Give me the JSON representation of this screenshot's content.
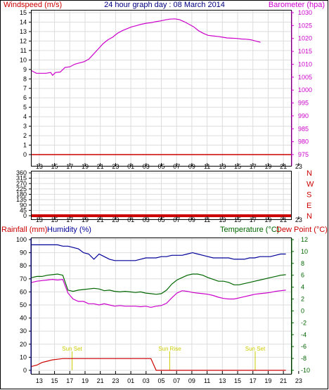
{
  "header": {
    "windspeed_label": "Windspeed (m/s)",
    "title": "24 hour graph day : 08 March 2014",
    "barometer_label": "Barometer (hpa)"
  },
  "bottom": {
    "rainfall_label": "Rainfall (mm)",
    "humidity_label": "Humidity (%)",
    "temperature_label": "Temperature (°C)",
    "dewpoint_label": "Dew Point (°C)"
  },
  "colors": {
    "windspeed": "#cc0000",
    "barometer": "#cc00cc",
    "direction": "#cc0000",
    "humidity": "#000099",
    "temperature": "#006600",
    "dewpoint": "#cc00cc",
    "rainfall": "#cc0000",
    "sun_event": "#cccc00",
    "grid": "#dddddd"
  },
  "x_ticks": [
    "13",
    "15",
    "17",
    "19",
    "21",
    "23",
    "01",
    "03",
    "05",
    "07",
    "09",
    "11",
    "13",
    "15",
    "17",
    "19",
    "21",
    "23"
  ],
  "chart_data": [
    {
      "type": "line",
      "title": "24 hour graph day : 08 March 2014",
      "x_hours_from_start": [
        0,
        0.5,
        1,
        1.5,
        2,
        2.2,
        2.5,
        3,
        3.5,
        4,
        4.5,
        5,
        5.5,
        6,
        6.5,
        7,
        7.5,
        8,
        8.5,
        9,
        9.5,
        10,
        10.5,
        11,
        11.5,
        12,
        12.5,
        13,
        13.5,
        14,
        14.5,
        15,
        15.5,
        16,
        16.5,
        17,
        17.5,
        18,
        18.5,
        19,
        19.5,
        20,
        20.5,
        21,
        21.5,
        22,
        22.5,
        23,
        23.5,
        24
      ],
      "left_axis": {
        "label": "Windspeed (m/s)",
        "ylim": [
          0,
          15
        ],
        "ticks": [
          0,
          1,
          2,
          3,
          4,
          5,
          6,
          7,
          8,
          9,
          10,
          11,
          12,
          13,
          14,
          15
        ]
      },
      "right_axis": {
        "label": "Barometer (hpa)",
        "ylim": [
          975,
          1030
        ],
        "ticks": [
          975,
          980,
          985,
          990,
          995,
          1000,
          1005,
          1010,
          1015,
          1020,
          1025,
          1030
        ]
      },
      "series": [
        {
          "name": "Windspeed (m/s)",
          "axis": "left",
          "values": [
            0,
            0,
            0,
            0,
            0,
            0,
            0,
            0,
            0,
            0,
            0,
            0,
            0,
            0,
            0,
            0,
            0,
            0,
            0,
            0,
            0,
            0,
            0,
            0,
            0,
            0,
            0,
            0,
            0,
            0,
            0,
            0,
            0,
            0,
            0,
            0,
            0,
            0,
            0,
            0,
            0,
            0,
            0,
            0,
            0,
            0,
            0,
            0,
            0,
            0
          ]
        },
        {
          "name": "Barometer (hpa)",
          "axis": "right",
          "values": [
            1007.5,
            1006.5,
            1006.5,
            1006.5,
            1006.8,
            1005.7,
            1006.8,
            1007,
            1008.8,
            1009,
            1010,
            1010.5,
            1011,
            1012,
            1014,
            1016,
            1018,
            1019.5,
            1020.5,
            1022,
            1023,
            1023.8,
            1024.5,
            1025,
            1025.5,
            1025.9,
            1026.1,
            1026.5,
            1026.8,
            1027.2,
            1027.5,
            1027.6,
            1027.3,
            1026.5,
            1025.5,
            1024.5,
            1023,
            1022,
            1021.2,
            1021,
            1020.8,
            1020.5,
            1020.2,
            1020.1,
            1020,
            1019.8,
            1019.7,
            1019.5,
            1019,
            1018.5
          ]
        }
      ]
    },
    {
      "type": "line",
      "title": "",
      "left_axis": {
        "ylim": [
          0,
          360
        ],
        "ticks": [
          0,
          45,
          90,
          135,
          180,
          225,
          270,
          315,
          360
        ]
      },
      "right_axis": {
        "ticks": [
          "N",
          "W",
          "S",
          "E",
          "N"
        ]
      },
      "series": [
        {
          "name": "",
          "values": [
            0,
            0,
            0,
            0,
            0,
            0,
            0,
            0,
            0,
            0,
            0,
            0,
            0,
            0,
            0,
            0,
            0,
            0,
            0,
            0,
            0,
            0,
            0,
            0,
            0,
            0,
            0,
            0,
            0,
            0,
            0,
            0,
            0,
            0,
            0,
            0,
            0,
            0,
            0,
            0,
            0,
            0,
            0,
            0,
            0,
            0,
            0,
            0,
            0,
            0
          ]
        }
      ]
    },
    {
      "type": "line",
      "title": "",
      "left_axis": {
        "label": "Rainfall (mm) / Humidity (%)",
        "ylim": [
          0,
          100
        ],
        "ticks": [
          0,
          10,
          20,
          30,
          40,
          50,
          60,
          70,
          80,
          90,
          100
        ]
      },
      "right_axis": {
        "label": "Temperature (°C) / Dew Point (°C)",
        "ylim": [
          -10,
          12
        ],
        "ticks": [
          -10,
          -8,
          -6,
          -4,
          -2,
          0,
          2,
          4,
          6,
          8,
          10,
          12
        ]
      },
      "annotations": [
        {
          "text": "Sun Set",
          "x_hours_from_start": 5.3
        },
        {
          "text": "Sun Rise",
          "x_hours_from_start": 18.1
        },
        {
          "text": "Sun Set",
          "x_hours_from_start": 29.3
        }
      ],
      "series": [
        {
          "name": "Humidity (%)",
          "axis": "left",
          "values": [
            96,
            96,
            96,
            96,
            96,
            96,
            95,
            95,
            94,
            93,
            90,
            89,
            85,
            89,
            87,
            85,
            84,
            84,
            84,
            84,
            84,
            85,
            86,
            86,
            86,
            87,
            87,
            88,
            88,
            88,
            89,
            90,
            89,
            88,
            87,
            86,
            86,
            86,
            86,
            85,
            85,
            85,
            86,
            86,
            87,
            87,
            87,
            88,
            89,
            89
          ]
        },
        {
          "name": "Temperature (°C)",
          "axis": "right",
          "values": [
            5.6,
            5.8,
            5.8,
            6,
            6.1,
            6.2,
            6.0,
            3.5,
            3.3,
            3.5,
            3.6,
            3.7,
            3.8,
            3.7,
            3.4,
            3.5,
            3.3,
            3.2,
            3.3,
            3.2,
            3.1,
            3.2,
            3.0,
            2.9,
            2.8,
            2.9,
            3.5,
            4.5,
            5.2,
            5.6,
            6.0,
            6.2,
            6.2,
            6.0,
            5.6,
            5.3,
            5.0,
            5.0,
            4.8,
            4.4,
            4.4,
            4.6,
            4.8,
            5.0,
            5.2,
            5.4,
            5.6,
            5.8,
            6.0,
            6.1
          ]
        },
        {
          "name": "Dew Point (°C)",
          "axis": "right",
          "values": [
            4.8,
            5.0,
            5.1,
            5.2,
            5.3,
            5.2,
            5.3,
            3.0,
            2.0,
            1.6,
            1.6,
            1.2,
            1.2,
            1.0,
            1.2,
            1.0,
            0.8,
            0.9,
            0.8,
            0.8,
            0.8,
            0.7,
            0.8,
            0.6,
            0.8,
            0.9,
            1.3,
            2.2,
            3.0,
            3.4,
            3.3,
            3.1,
            3.0,
            2.9,
            2.8,
            2.6,
            2.3,
            2.1,
            2.0,
            2.0,
            2.2,
            2.4,
            2.6,
            2.8,
            2.9,
            3.0,
            3.1,
            3.3,
            3.4,
            3.5
          ]
        },
        {
          "name": "Rainfall (mm)",
          "axis": "left",
          "values": [
            3,
            4,
            6,
            7,
            8,
            8.5,
            9,
            9,
            9,
            9,
            9,
            9,
            9,
            9,
            9,
            9,
            9,
            9,
            9,
            9,
            9,
            9,
            9,
            9,
            0,
            0,
            0,
            0,
            0,
            0,
            0,
            0,
            0,
            0,
            0,
            0,
            0,
            0,
            0,
            0,
            0,
            0,
            0,
            0,
            0,
            0,
            0,
            0,
            0,
            0
          ]
        }
      ]
    }
  ]
}
